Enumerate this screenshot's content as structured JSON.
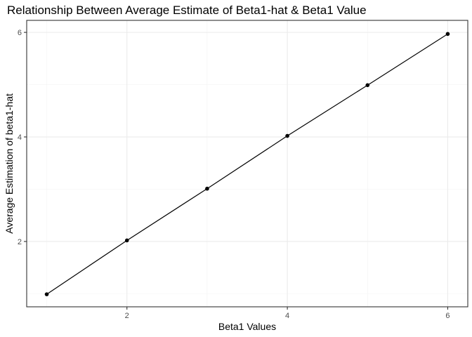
{
  "chart_data": {
    "type": "line",
    "title": "Relationship Between Average Estimate of Beta1-hat & Beta1 Value",
    "xlabel": "Beta1 Values",
    "ylabel": "Average Estimation of beta1-hat",
    "x": [
      1,
      2,
      3,
      4,
      5,
      6
    ],
    "series": [
      {
        "values": [
          0.99,
          2.02,
          3.01,
          4.02,
          4.99,
          5.97
        ]
      }
    ],
    "xlim": [
      0.75,
      6.25
    ],
    "ylim": [
      0.75,
      6.23
    ],
    "xticks": [
      2,
      4,
      6
    ],
    "yticks": [
      2,
      4,
      6
    ],
    "xtick_labels": [
      "2",
      "4",
      "6"
    ],
    "ytick_labels": [
      "2",
      "4",
      "6"
    ],
    "grid": true,
    "legend": "none",
    "colors": {
      "line": "#000000",
      "points": "#000000",
      "grid": "#ebebeb",
      "border": "#333333",
      "tick_text": "#4d4d4d"
    }
  }
}
